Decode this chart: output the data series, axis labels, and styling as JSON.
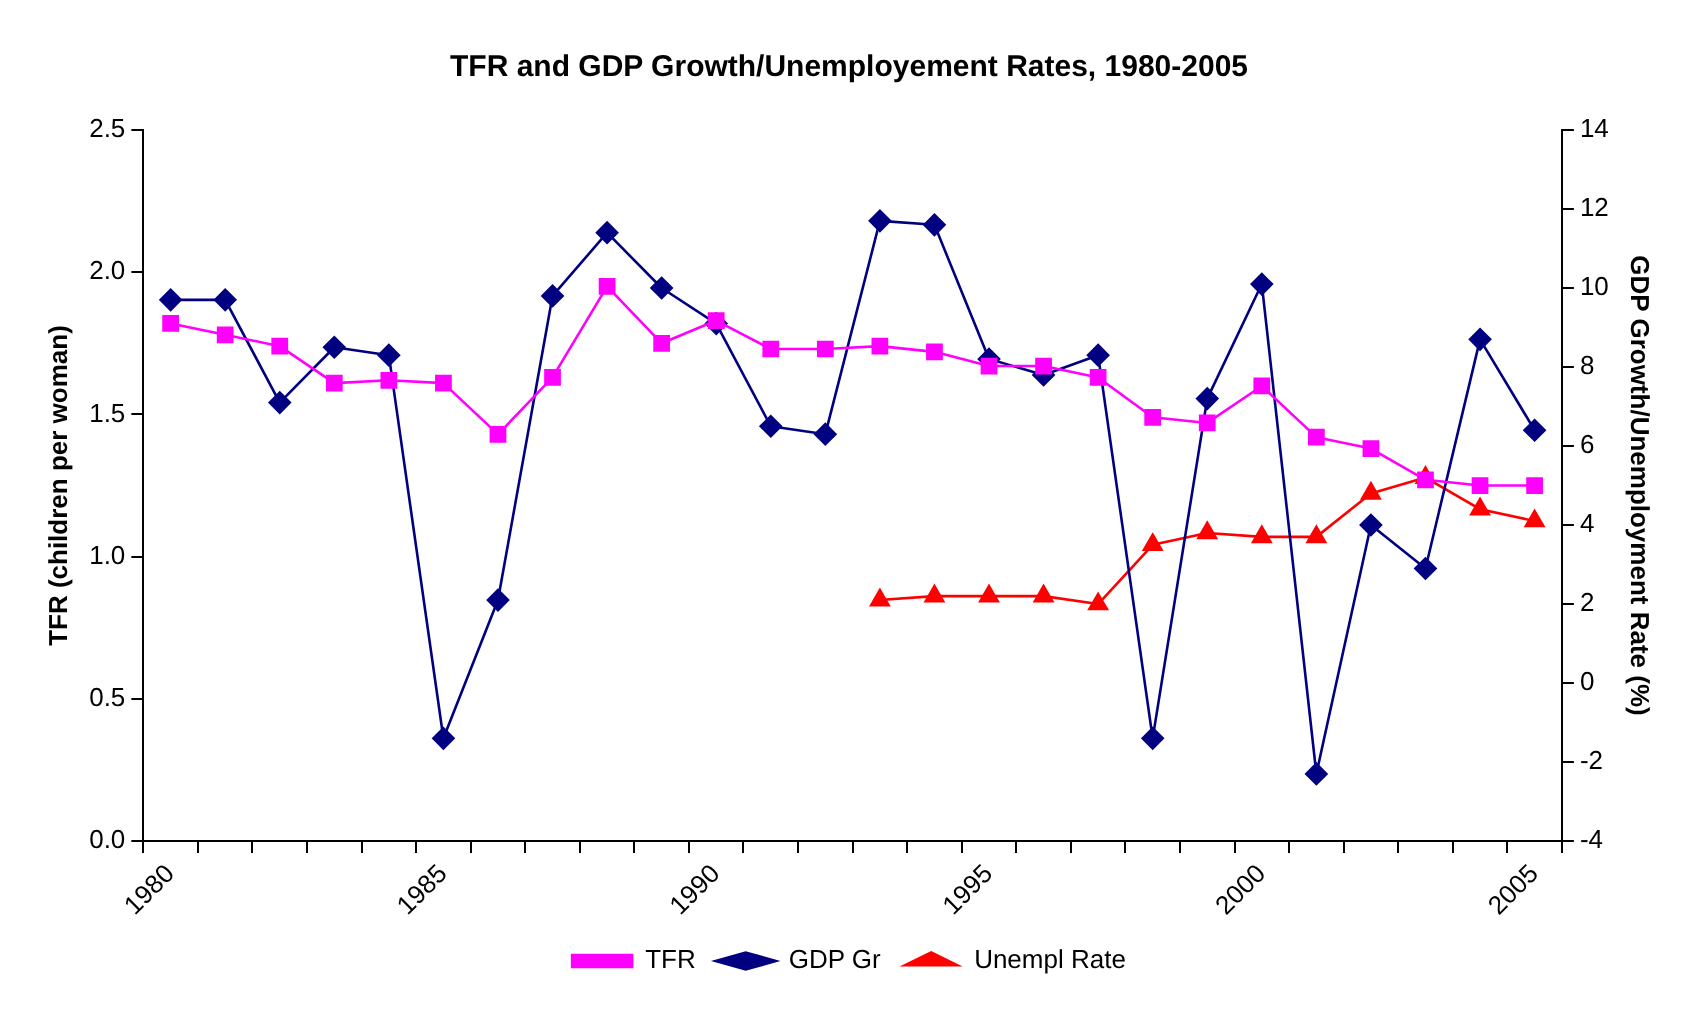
{
  "chart_data": {
    "type": "line",
    "title": "TFR and GDP Growth/Unemployement Rates, 1980-2005",
    "ylabel": "TFR (children per woman)",
    "y2label": "GDP Growth/Unemployment Rate (%)",
    "categories": [
      "1980",
      null,
      null,
      null,
      null,
      "1985",
      null,
      null,
      null,
      null,
      "1990",
      null,
      null,
      null,
      null,
      "1995",
      null,
      null,
      null,
      null,
      "2000",
      null,
      null,
      null,
      null,
      "2005"
    ],
    "series": [
      {
        "name": "TFR",
        "color": "#ff00ff",
        "marker": "square",
        "values": [
          1.82,
          1.78,
          1.74,
          1.61,
          1.62,
          1.61,
          1.43,
          1.63,
          1.95,
          1.75,
          1.83,
          1.73,
          1.73,
          1.74,
          1.72,
          1.67,
          1.67,
          1.63,
          1.49,
          1.47,
          1.6,
          1.42,
          1.38,
          1.27,
          1.25,
          1.25
        ]
      },
      {
        "name": "GDP Gr",
        "color": "#000080",
        "marker": "diamond",
        "axis": "y2",
        "values": [
          9.7,
          9.7,
          7.1,
          8.5,
          8.3,
          -1.4,
          2.1,
          9.8,
          11.4,
          10.0,
          9.1,
          6.5,
          6.3,
          11.7,
          11.6,
          8.2,
          7.8,
          8.3,
          -1.4,
          7.2,
          10.1,
          -2.3,
          4.0,
          2.9,
          8.7,
          6.4
        ]
      },
      {
        "name": "Unempl Rate",
        "color": "#ff0000",
        "marker": "triangle",
        "axis": "y2",
        "values": [
          null,
          null,
          null,
          null,
          null,
          null,
          null,
          null,
          null,
          null,
          null,
          null,
          null,
          2.1,
          2.2,
          2.2,
          2.2,
          2.0,
          3.5,
          3.8,
          3.7,
          3.7,
          4.8,
          5.2,
          4.4,
          4.1
        ]
      }
    ],
    "ylim": [
      0,
      2.5
    ],
    "yticks": [
      {
        "value": 0,
        "label": "0.0"
      },
      0.5,
      {
        "value": 1,
        "label": "1.0"
      },
      1.5,
      {
        "value": 2,
        "label": "2.0"
      },
      2.5
    ],
    "y2lim": [
      -4,
      14
    ],
    "y2ticks": [
      -4,
      -2,
      0,
      2,
      4,
      6,
      8,
      10,
      12,
      14
    ],
    "grid": false,
    "legend": "bottom",
    "line_style": "solid"
  }
}
